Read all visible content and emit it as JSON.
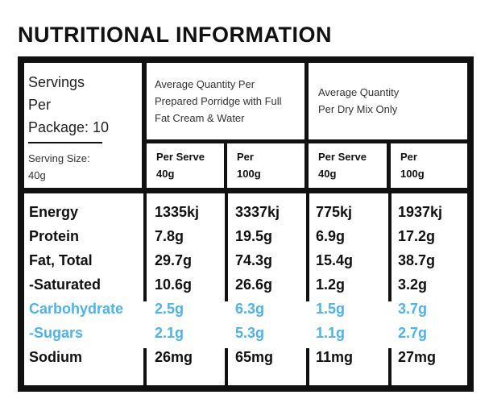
{
  "title": "NUTRITIONAL INFORMATION",
  "servings": {
    "line1": "Servings",
    "line2": "Per",
    "line3": "Package: 10",
    "size_label": "Serving Size:",
    "size_value": "40g"
  },
  "groups": [
    {
      "label_lines": [
        "Average Quantity Per",
        "Prepared Porridge with Full",
        "Fat Cream & Water"
      ]
    },
    {
      "label_lines": [
        "Average Quantity",
        "Per Dry Mix Only"
      ]
    }
  ],
  "columns": [
    {
      "line1": "Per Serve",
      "line2": "40g"
    },
    {
      "line1": "Per",
      "line2": "100g"
    },
    {
      "line1": "Per Serve",
      "line2": "40g"
    },
    {
      "line1": "Per",
      "line2": "100g"
    }
  ],
  "accent_color": "#4ab3f0",
  "rows": [
    {
      "label": "Energy",
      "values": [
        "1335kj",
        "3337kj",
        "775kj",
        "1937kj"
      ]
    },
    {
      "label": "Protein",
      "values": [
        "7.8g",
        "19.5g",
        "6.9g",
        "17.2g"
      ]
    },
    {
      "label": "Fat, Total",
      "values": [
        "29.7g",
        "74.3g",
        "15.4g",
        "38.7g"
      ]
    },
    {
      "label": "-Saturated",
      "values": [
        "10.6g",
        "26.6g",
        "1.2g",
        "3.2g"
      ]
    },
    {
      "label": "Carbohydrate",
      "values": [
        "2.5g",
        "6.3g",
        "1.5g",
        "3.7g"
      ]
    },
    {
      "label": "-Sugars",
      "values": [
        "2.1g",
        "5.3g",
        "1.1g",
        "2.7g"
      ]
    },
    {
      "label": "Sodium",
      "values": [
        "26mg",
        "65mg",
        "11mg",
        "27mg"
      ]
    }
  ]
}
